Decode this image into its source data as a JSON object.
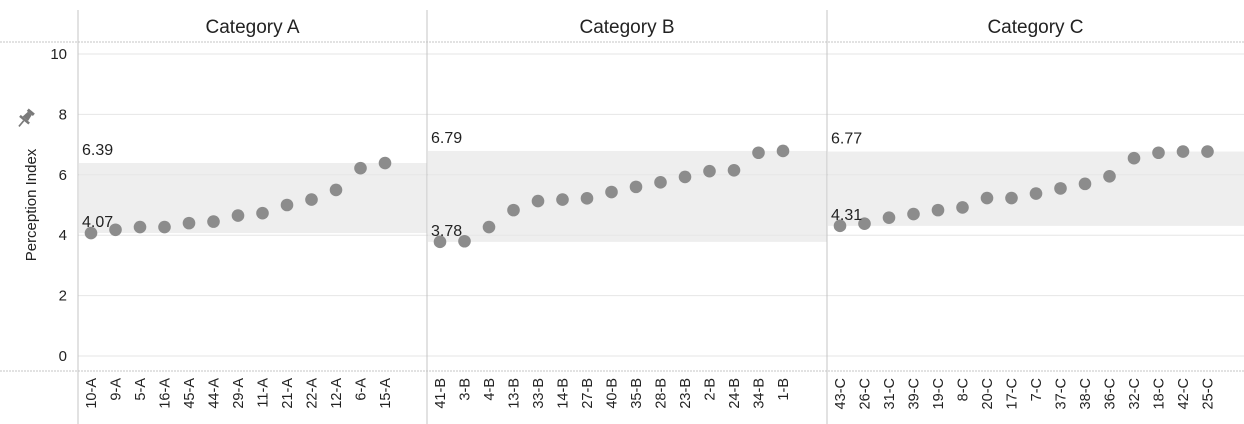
{
  "chart_data": {
    "type": "scatter",
    "ylabel": "Perception Index",
    "ylim": [
      0,
      10
    ],
    "yticks": [
      "0",
      "2",
      "4",
      "6",
      "8",
      "10"
    ],
    "grid": true,
    "legend": "none",
    "colors": {
      "point": "#8c8c8c",
      "band": "#eeeeee",
      "grid": "#e6e6e6",
      "divider": "#c4c4c4",
      "pin_icon": "#7a7a7a"
    },
    "pin_icon": "pin-icon",
    "facets": [
      {
        "title": "Category A",
        "band": {
          "low": 4.07,
          "high": 6.39,
          "low_label": "4.07",
          "high_label": "6.39"
        },
        "categories": [
          "10-A",
          "9-A",
          "5-A",
          "16-A",
          "45-A",
          "44-A",
          "29-A",
          "11-A",
          "21-A",
          "22-A",
          "12-A",
          "6-A",
          "15-A"
        ],
        "values": [
          4.07,
          4.18,
          4.27,
          4.27,
          4.4,
          4.45,
          4.65,
          4.73,
          5.0,
          5.18,
          5.5,
          6.22,
          6.39
        ]
      },
      {
        "title": "Category B",
        "band": {
          "low": 3.78,
          "high": 6.79,
          "low_label": "3.78",
          "high_label": "6.79"
        },
        "categories": [
          "41-B",
          "3-B",
          "4-B",
          "13-B",
          "33-B",
          "14-B",
          "27-B",
          "40-B",
          "35-B",
          "28-B",
          "23-B",
          "2-B",
          "24-B",
          "34-B",
          "1-B"
        ],
        "values": [
          3.78,
          3.8,
          4.27,
          4.83,
          5.13,
          5.18,
          5.22,
          5.43,
          5.6,
          5.75,
          5.93,
          6.12,
          6.15,
          6.73,
          6.79
        ]
      },
      {
        "title": "Category C",
        "band": {
          "low": 4.31,
          "high": 6.77,
          "low_label": "4.31",
          "high_label": "6.77"
        },
        "categories": [
          "43-C",
          "26-C",
          "31-C",
          "39-C",
          "19-C",
          "8-C",
          "20-C",
          "17-C",
          "7-C",
          "37-C",
          "38-C",
          "36-C",
          "32-C",
          "18-C",
          "42-C",
          "25-C"
        ],
        "values": [
          4.31,
          4.38,
          4.58,
          4.7,
          4.83,
          4.92,
          5.23,
          5.23,
          5.38,
          5.55,
          5.7,
          5.95,
          6.55,
          6.73,
          6.77,
          6.77
        ]
      }
    ]
  }
}
